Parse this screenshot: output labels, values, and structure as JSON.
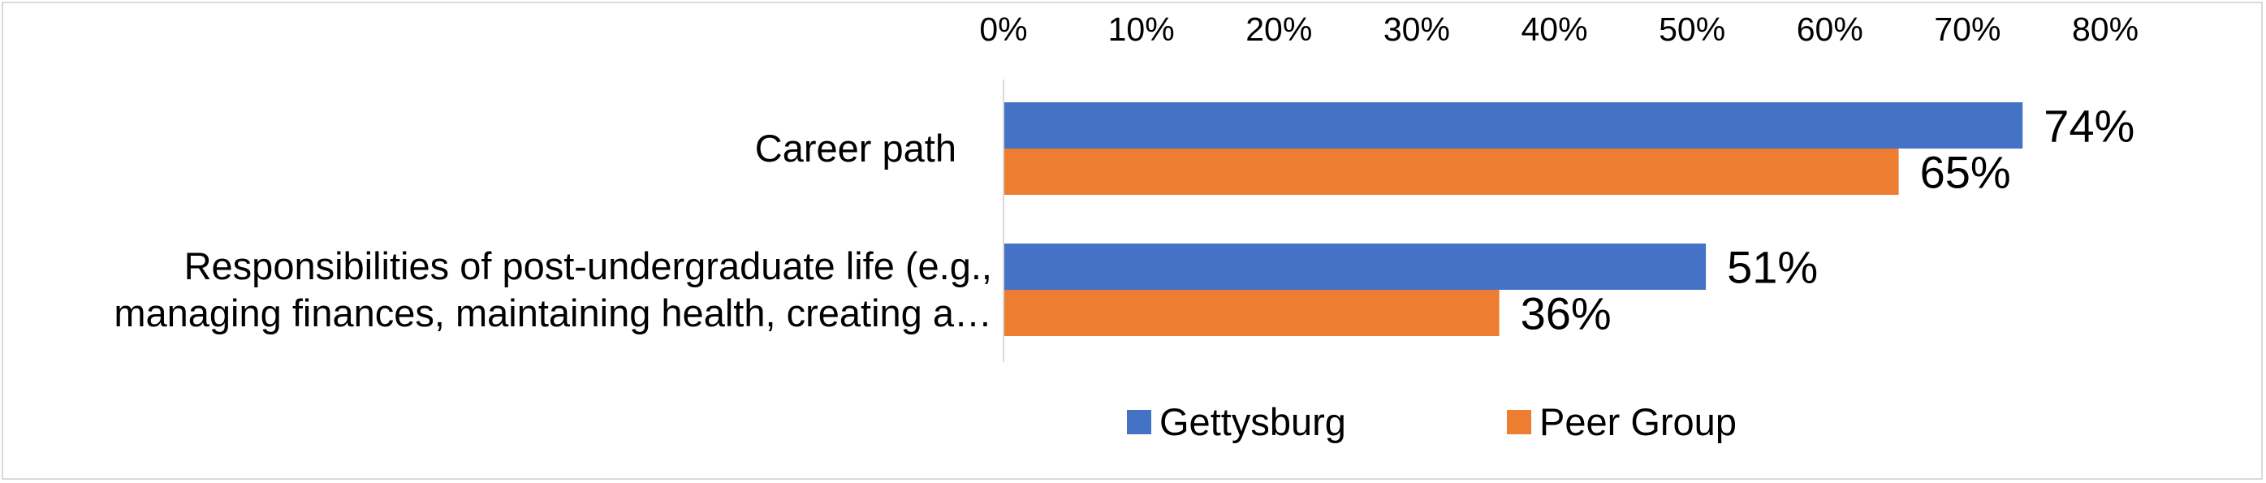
{
  "chart_data": {
    "type": "bar",
    "orientation": "horizontal",
    "categories": [
      [
        "Career path"
      ],
      [
        "Responsibilities of post-undergraduate life (e.g.,",
        "managing finances, maintaining health, creating a…"
      ]
    ],
    "series": [
      {
        "name": "Gettysburg",
        "values": [
          74,
          51
        ],
        "color": "#4472C4"
      },
      {
        "name": "Peer Group",
        "values": [
          65,
          36
        ],
        "color": "#ED7D31"
      }
    ],
    "xlim": [
      0,
      80
    ],
    "x_ticks": [
      0,
      10,
      20,
      30,
      40,
      50,
      60,
      70,
      80
    ],
    "tick_format": "percent",
    "axis_position": "top",
    "data_labels": true,
    "grid": false,
    "legend": "bottom"
  }
}
